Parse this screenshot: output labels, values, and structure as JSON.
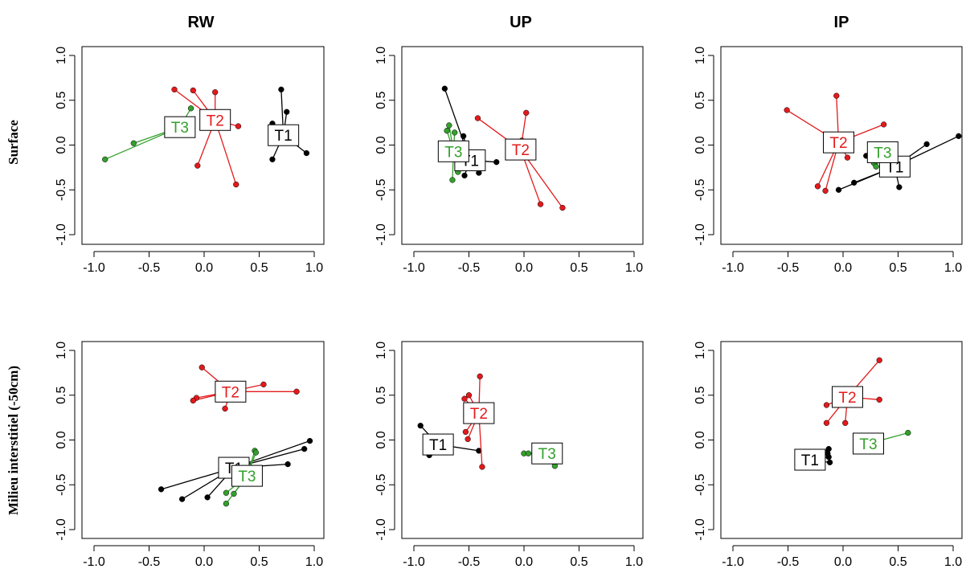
{
  "figure": {
    "column_titles": [
      "RW",
      "UP",
      "IP"
    ],
    "row_titles": [
      "Surface",
      "Milieu interstitiel (-50cm)"
    ]
  },
  "colors": {
    "T1": "#000000",
    "T2": "#e31a1c",
    "T3": "#33a02c"
  },
  "chart_data": [
    {
      "type": "scatter",
      "panel": "RW-Surface",
      "grid": false,
      "xlim": [
        -1.0,
        1.0
      ],
      "ylim": [
        -1.0,
        1.0
      ],
      "xticks": [
        "-1.0",
        "-0.5",
        "0.0",
        "0.5",
        "1.0"
      ],
      "yticks": [
        "-1.0",
        "-0.5",
        "0.0",
        "0.5",
        "1.0"
      ],
      "groups": [
        {
          "name": "T1",
          "centroid": [
            0.72,
            0.11
          ],
          "points": [
            [
              0.7,
              0.62
            ],
            [
              0.75,
              0.37
            ],
            [
              0.62,
              0.24
            ],
            [
              0.62,
              -0.16
            ],
            [
              0.93,
              -0.09
            ]
          ]
        },
        {
          "name": "T2",
          "centroid": [
            0.1,
            0.28
          ],
          "points": [
            [
              -0.27,
              0.62
            ],
            [
              -0.1,
              0.61
            ],
            [
              0.1,
              0.59
            ],
            [
              0.31,
              0.21
            ],
            [
              -0.06,
              -0.23
            ],
            [
              0.29,
              -0.44
            ]
          ]
        },
        {
          "name": "T3",
          "centroid": [
            -0.22,
            0.2
          ],
          "points": [
            [
              -0.12,
              0.41
            ],
            [
              -0.64,
              0.02
            ],
            [
              -0.9,
              -0.16
            ]
          ]
        }
      ]
    },
    {
      "type": "scatter",
      "panel": "UP-Surface",
      "grid": false,
      "xlim": [
        -1.0,
        1.0
      ],
      "ylim": [
        -1.0,
        1.0
      ],
      "xticks": [
        "-1.0",
        "-0.5",
        "0.0",
        "0.5",
        "1.0"
      ],
      "yticks": [
        "-1.0",
        "-0.5",
        "0.0",
        "0.5",
        "1.0"
      ],
      "groups": [
        {
          "name": "T1",
          "centroid": [
            -0.49,
            -0.17
          ],
          "points": [
            [
              -0.72,
              0.63
            ],
            [
              -0.55,
              0.1
            ],
            [
              -0.54,
              -0.34
            ],
            [
              -0.41,
              -0.31
            ],
            [
              -0.25,
              -0.19
            ]
          ]
        },
        {
          "name": "T2",
          "centroid": [
            -0.03,
            -0.05
          ],
          "points": [
            [
              -0.42,
              0.3
            ],
            [
              0.02,
              0.36
            ],
            [
              -0.02,
              0.05
            ],
            [
              -0.11,
              0.02
            ],
            [
              0.15,
              -0.66
            ],
            [
              0.35,
              -0.7
            ]
          ]
        },
        {
          "name": "T3",
          "centroid": [
            -0.64,
            -0.07
          ],
          "points": [
            [
              -0.68,
              0.22
            ],
            [
              -0.7,
              0.16
            ],
            [
              -0.63,
              0.14
            ],
            [
              -0.6,
              -0.3
            ],
            [
              -0.65,
              -0.39
            ]
          ]
        }
      ]
    },
    {
      "type": "scatter",
      "panel": "IP-Surface",
      "grid": false,
      "xlim": [
        -1.0,
        1.0
      ],
      "ylim": [
        -1.0,
        1.0
      ],
      "xticks": [
        "-1.0",
        "-0.5",
        "0.0",
        "0.5",
        "1.0"
      ],
      "yticks": [
        "-1.0",
        "-0.5",
        "0.0",
        "0.5",
        "1.0"
      ],
      "groups": [
        {
          "name": "T1",
          "centroid": [
            0.47,
            -0.24
          ],
          "points": [
            [
              0.76,
              0.01
            ],
            [
              1.05,
              0.1
            ],
            [
              0.21,
              -0.12
            ],
            [
              0.1,
              -0.42
            ],
            [
              -0.04,
              -0.5
            ],
            [
              0.51,
              -0.47
            ]
          ]
        },
        {
          "name": "T2",
          "centroid": [
            -0.04,
            0.03
          ],
          "points": [
            [
              -0.51,
              0.39
            ],
            [
              -0.06,
              0.55
            ],
            [
              0.37,
              0.23
            ],
            [
              0.04,
              -0.14
            ],
            [
              -0.23,
              -0.46
            ],
            [
              -0.16,
              -0.51
            ]
          ]
        },
        {
          "name": "T3",
          "centroid": [
            0.36,
            -0.08
          ],
          "points": [
            [
              0.25,
              -0.14
            ],
            [
              0.28,
              -0.2
            ],
            [
              0.3,
              -0.24
            ]
          ]
        }
      ]
    },
    {
      "type": "scatter",
      "panel": "RW-Milieu interstitiel (-50cm)",
      "grid": false,
      "xlim": [
        -1.0,
        1.0
      ],
      "ylim": [
        -1.0,
        1.0
      ],
      "xticks": [
        "-1.0",
        "-0.5",
        "0.0",
        "0.5",
        "1.0"
      ],
      "yticks": [
        "-1.0",
        "-0.5",
        "0.0",
        "0.5",
        "1.0"
      ],
      "groups": [
        {
          "name": "T1",
          "centroid": [
            0.27,
            -0.31
          ],
          "points": [
            [
              -0.39,
              -0.55
            ],
            [
              -0.2,
              -0.66
            ],
            [
              0.03,
              -0.64
            ],
            [
              0.76,
              -0.27
            ],
            [
              0.91,
              -0.1
            ],
            [
              0.96,
              -0.01
            ]
          ]
        },
        {
          "name": "T2",
          "centroid": [
            0.24,
            0.54
          ],
          "points": [
            [
              -0.02,
              0.81
            ],
            [
              -0.07,
              0.47
            ],
            [
              -0.1,
              0.44
            ],
            [
              0.19,
              0.35
            ],
            [
              0.54,
              0.62
            ],
            [
              0.84,
              0.54
            ]
          ]
        },
        {
          "name": "T3",
          "centroid": [
            0.39,
            -0.4
          ],
          "points": [
            [
              0.46,
              -0.12
            ],
            [
              0.47,
              -0.14
            ],
            [
              0.2,
              -0.59
            ],
            [
              0.2,
              -0.71
            ],
            [
              0.27,
              -0.6
            ]
          ]
        }
      ]
    },
    {
      "type": "scatter",
      "panel": "UP-Milieu interstitiel (-50cm)",
      "grid": false,
      "xlim": [
        -1.0,
        1.0
      ],
      "ylim": [
        -1.0,
        1.0
      ],
      "xticks": [
        "-1.0",
        "-0.5",
        "0.0",
        "0.5",
        "1.0"
      ],
      "yticks": [
        "-1.0",
        "-0.5",
        "0.0",
        "0.5",
        "1.0"
      ],
      "groups": [
        {
          "name": "T1",
          "centroid": [
            -0.78,
            -0.05
          ],
          "points": [
            [
              -0.94,
              0.16
            ],
            [
              -0.86,
              -0.17
            ],
            [
              -0.41,
              -0.12
            ]
          ]
        },
        {
          "name": "T2",
          "centroid": [
            -0.41,
            0.3
          ],
          "points": [
            [
              -0.4,
              0.71
            ],
            [
              -0.5,
              0.5
            ],
            [
              -0.54,
              0.46
            ],
            [
              -0.53,
              0.09
            ],
            [
              -0.51,
              0.01
            ],
            [
              -0.38,
              -0.3
            ]
          ]
        },
        {
          "name": "T3",
          "centroid": [
            0.21,
            -0.15
          ],
          "points": [
            [
              0.0,
              -0.15
            ],
            [
              0.04,
              -0.15
            ],
            [
              0.28,
              -0.29
            ]
          ]
        }
      ]
    },
    {
      "type": "scatter",
      "panel": "IP-Milieu interstitiel (-50cm)",
      "grid": false,
      "xlim": [
        -1.0,
        1.0
      ],
      "ylim": [
        -1.0,
        1.0
      ],
      "xticks": [
        "-1.0",
        "-0.5",
        "0.0",
        "0.5",
        "1.0"
      ],
      "yticks": [
        "-1.0",
        "-0.5",
        "0.0",
        "0.5",
        "1.0"
      ],
      "groups": [
        {
          "name": "T1",
          "centroid": [
            -0.3,
            -0.22
          ],
          "points": [
            [
              -0.13,
              -0.1
            ],
            [
              -0.14,
              -0.15
            ],
            [
              -0.13,
              -0.19
            ],
            [
              -0.12,
              -0.25
            ]
          ]
        },
        {
          "name": "T2",
          "centroid": [
            0.04,
            0.48
          ],
          "points": [
            [
              0.33,
              0.89
            ],
            [
              0.33,
              0.45
            ],
            [
              -0.15,
              0.39
            ],
            [
              -0.15,
              0.19
            ],
            [
              0.02,
              0.19
            ]
          ]
        },
        {
          "name": "T3",
          "centroid": [
            0.23,
            -0.04
          ],
          "points": [
            [
              0.59,
              0.08
            ],
            [
              0.12,
              -0.02
            ],
            [
              0.13,
              -0.06
            ],
            [
              0.12,
              -0.08
            ]
          ]
        }
      ]
    }
  ]
}
